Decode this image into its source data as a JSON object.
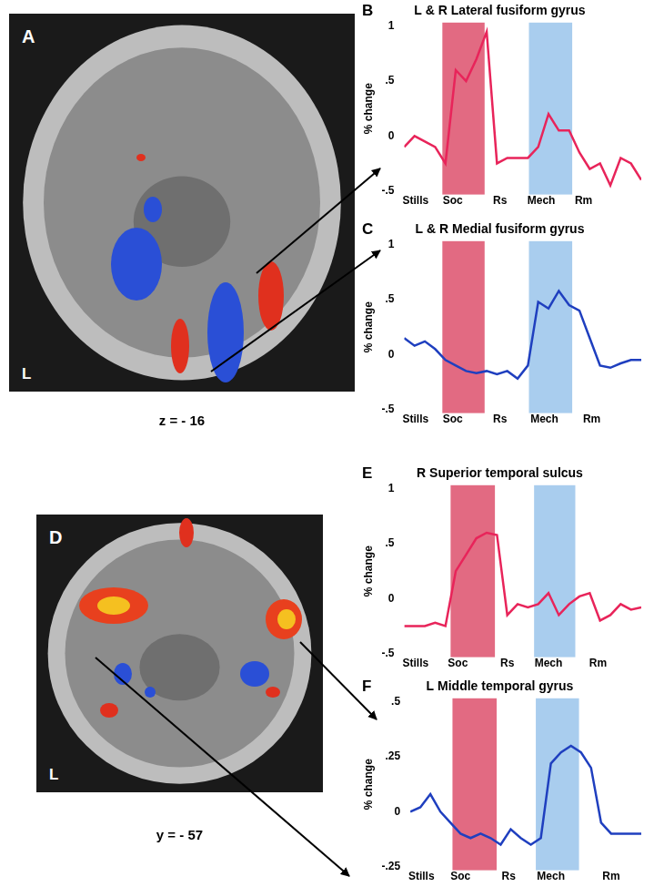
{
  "chart_data": [
    {
      "type": "line",
      "panel": "B",
      "title": "L & R Lateral fusiform gyrus",
      "y_label": "% change",
      "x": [
        0,
        1,
        2,
        3,
        4,
        5,
        6,
        7,
        8,
        9,
        10,
        11,
        12,
        13,
        14,
        15,
        16,
        17,
        18,
        19,
        20,
        21,
        22,
        23
      ],
      "series": [
        {
          "name": "L & R Lateral fusiform gyrus",
          "color": "#e8245a",
          "values": [
            -0.1,
            0.0,
            -0.05,
            -0.1,
            -0.25,
            0.6,
            0.5,
            0.7,
            0.95,
            -0.25,
            -0.2,
            -0.2,
            -0.2,
            -0.1,
            0.2,
            0.05,
            0.05,
            -0.15,
            -0.3,
            -0.25,
            -0.45,
            -0.2,
            -0.25,
            -0.4
          ]
        }
      ],
      "xlim": [
        0,
        23
      ],
      "xticks": [
        {
          "value": 1.1,
          "label": "Stills"
        },
        {
          "value": 4.7,
          "label": "Soc"
        },
        {
          "value": 9.3,
          "label": "Rs"
        },
        {
          "value": 13.3,
          "label": "Mech"
        },
        {
          "value": 17.4,
          "label": "Rm"
        }
      ],
      "ylim": [
        -0.5,
        1
      ],
      "yticks": [
        {
          "value": -0.5,
          "label": "-.5"
        },
        0,
        {
          "value": 0.5,
          "label": ".5"
        },
        1
      ],
      "bands": [
        {
          "from": 3.7,
          "to": 7.8,
          "color": "#e26a82"
        },
        {
          "from": 12.1,
          "to": 16.3,
          "color": "#a9cdee"
        }
      ],
      "grid": false
    },
    {
      "type": "line",
      "panel": "C",
      "title": "L & R Medial fusiform gyrus",
      "y_label": "% change",
      "x": [
        0,
        1,
        2,
        3,
        4,
        5,
        6,
        7,
        8,
        9,
        10,
        11,
        12,
        13,
        14,
        15,
        16,
        17,
        18,
        19,
        20,
        21,
        22,
        23
      ],
      "series": [
        {
          "name": "L & R Medial fusiform gyrus",
          "color": "#1f3fbf",
          "values": [
            0.15,
            0.08,
            0.12,
            0.05,
            -0.05,
            -0.1,
            -0.15,
            -0.17,
            -0.15,
            -0.18,
            -0.15,
            -0.22,
            -0.1,
            0.48,
            0.42,
            0.58,
            0.45,
            0.4,
            0.15,
            -0.1,
            -0.12,
            -0.08,
            -0.05,
            -0.05
          ]
        }
      ],
      "xlim": [
        0,
        23
      ],
      "xticks": [
        {
          "value": 1.1,
          "label": "Stills"
        },
        {
          "value": 4.7,
          "label": "Soc"
        },
        {
          "value": 9.3,
          "label": "Rs"
        },
        {
          "value": 13.6,
          "label": "Mech"
        },
        {
          "value": 18.2,
          "label": "Rm"
        }
      ],
      "ylim": [
        -0.5,
        1
      ],
      "yticks": [
        {
          "value": -0.5,
          "label": "-.5"
        },
        0,
        {
          "value": 0.5,
          "label": ".5"
        },
        1
      ],
      "bands": [
        {
          "from": 3.7,
          "to": 7.8,
          "color": "#e26a82"
        },
        {
          "from": 12.1,
          "to": 16.3,
          "color": "#a9cdee"
        }
      ],
      "grid": false
    },
    {
      "type": "line",
      "panel": "E",
      "title": "R Superior temporal sulcus",
      "y_label": "% change",
      "x": [
        0,
        1,
        2,
        3,
        4,
        5,
        6,
        7,
        8,
        9,
        10,
        11,
        12,
        13,
        14,
        15,
        16,
        17,
        18,
        19,
        20,
        21,
        22,
        23
      ],
      "series": [
        {
          "name": "R Superior temporal sulcus",
          "color": "#e8245a",
          "values": [
            -0.25,
            -0.25,
            -0.25,
            -0.22,
            -0.25,
            0.25,
            0.4,
            0.55,
            0.6,
            0.58,
            -0.15,
            -0.05,
            -0.08,
            -0.05,
            0.05,
            -0.15,
            -0.05,
            0.02,
            0.05,
            -0.2,
            -0.15,
            -0.05,
            -0.1,
            -0.08
          ]
        }
      ],
      "xlim": [
        0,
        23
      ],
      "xticks": [
        {
          "value": 1.1,
          "label": "Stills"
        },
        {
          "value": 5.2,
          "label": "Soc"
        },
        {
          "value": 10.0,
          "label": "Rs"
        },
        {
          "value": 14.0,
          "label": "Mech"
        },
        {
          "value": 18.8,
          "label": "Rm"
        }
      ],
      "ylim": [
        -0.5,
        1
      ],
      "yticks": [
        {
          "value": -0.5,
          "label": "-.5"
        },
        0,
        {
          "value": 0.5,
          "label": ".5"
        },
        1
      ],
      "bands": [
        {
          "from": 4.5,
          "to": 8.8,
          "color": "#e26a82"
        },
        {
          "from": 12.6,
          "to": 16.6,
          "color": "#a9cdee"
        }
      ],
      "grid": false
    },
    {
      "type": "line",
      "panel": "F",
      "title": "L Middle temporal gyrus",
      "y_label": "% change",
      "x": [
        0,
        1,
        2,
        3,
        4,
        5,
        6,
        7,
        8,
        9,
        10,
        11,
        12,
        13,
        14,
        15,
        16,
        17,
        18,
        19,
        20,
        21,
        22,
        23
      ],
      "series": [
        {
          "name": "L Middle temporal gyrus",
          "color": "#1f3fbf",
          "values": [
            0.0,
            0.02,
            0.08,
            0.0,
            -0.05,
            -0.1,
            -0.12,
            -0.1,
            -0.12,
            -0.15,
            -0.08,
            -0.12,
            -0.15,
            -0.12,
            0.22,
            0.27,
            0.3,
            0.27,
            0.2,
            -0.05,
            -0.1,
            -0.1,
            -0.1,
            -0.1
          ]
        }
      ],
      "xlim": [
        0,
        23
      ],
      "xticks": [
        {
          "value": 1.1,
          "label": "Stills"
        },
        {
          "value": 5.0,
          "label": "Soc"
        },
        {
          "value": 9.8,
          "label": "Rs"
        },
        {
          "value": 14.0,
          "label": "Mech"
        },
        {
          "value": 20.0,
          "label": "Rm"
        }
      ],
      "ylim": [
        -0.25,
        0.5
      ],
      "yticks": [
        {
          "value": -0.25,
          "label": "-.25"
        },
        0,
        {
          "value": 0.25,
          "label": ".25"
        },
        {
          "value": 0.5,
          "label": ".5"
        }
      ],
      "bands": [
        {
          "from": 4.2,
          "to": 8.6,
          "color": "#e26a82"
        },
        {
          "from": 12.5,
          "to": 16.8,
          "color": "#a9cdee"
        }
      ],
      "grid": false
    }
  ],
  "images": [
    {
      "panel": "A",
      "side": "L",
      "caption": "z = - 16"
    },
    {
      "panel": "D",
      "side": "L",
      "caption": "y = - 57"
    }
  ]
}
